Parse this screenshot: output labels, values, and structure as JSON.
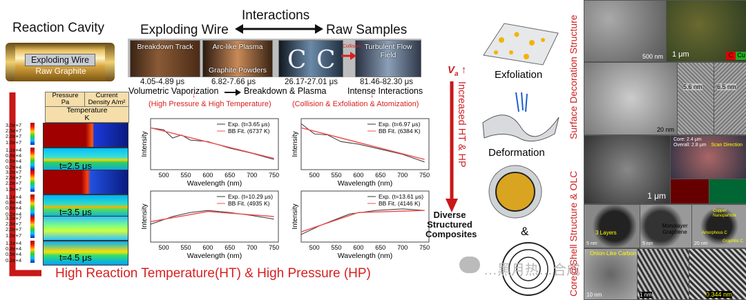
{
  "cavity": {
    "title": "Reaction Cavity",
    "label1": "Exploding Wire",
    "label2": "Raw Graphite"
  },
  "interactions": {
    "title": "Interactions",
    "left": "Exploding Wire",
    "right": "Raw Samples"
  },
  "stages": [
    {
      "caption": "Breakdown Track",
      "time": "4.05-4.89 μs"
    },
    {
      "caption": "Arc-like Plasma",
      "sub": "Graphite Powders",
      "time": "6.82-7.66 μs"
    },
    {
      "caption": "",
      "time": "26.17-27.01 μs"
    },
    {
      "caption": "Turbulent Flow Field",
      "tag": "Collision",
      "time": "81.46-82.30 μs"
    }
  ],
  "process": {
    "p1": "Volumetric Vaporization",
    "p2": "Breakdown & Plasma",
    "p3": "Intense Interactions",
    "sub1": "(High Pressure & High Temperature)",
    "sub2": "(Collision & Exfoliation & Atomization)"
  },
  "sim": {
    "h1a": "Pressure",
    "h1b": "Pa",
    "h2a": "Current",
    "h2b": "Density A/m²",
    "h3a": "Temperature",
    "h3b": "K",
    "scale_top": [
      "3.0e+7",
      "2.5e+7",
      "2.0e+7",
      "1.5e+7"
    ],
    "scale_bot": [
      "1.1e+4",
      "0.8e+4",
      "0.5e+4",
      "0.2e+4"
    ],
    "t1": "t=2.5 μs",
    "t2": "t=3.5 μs",
    "t3": "t=4.5 μs"
  },
  "bottom_title": "High Reaction Temperature(HT) & High Pressure (HP)",
  "chart_data": [
    {
      "type": "line",
      "xlabel": "Wavelength (nm)",
      "ylabel": "Intensity",
      "xlim": [
        470,
        760
      ],
      "xticks": [
        500,
        550,
        600,
        650,
        700,
        750
      ],
      "legend": [
        "Exp. (t=3.65 μs)",
        "BB Fit. (6737 K)"
      ],
      "series": [
        {
          "name": "Exp.",
          "x": [
            470,
            500,
            520,
            540,
            560,
            600,
            650,
            700,
            750
          ],
          "y": [
            0.82,
            0.78,
            0.62,
            0.68,
            0.58,
            0.55,
            0.42,
            0.32,
            0.2
          ]
        },
        {
          "name": "BB Fit.",
          "x": [
            470,
            750
          ],
          "y": [
            0.82,
            0.22
          ]
        }
      ]
    },
    {
      "type": "line",
      "xlabel": "Wavelength (nm)",
      "ylabel": "Intensity",
      "xlim": [
        470,
        760
      ],
      "xticks": [
        500,
        550,
        600,
        650,
        700,
        750
      ],
      "legend": [
        "Exp. (t=6.97 μs)",
        "BB Fit. (6384 K)"
      ],
      "series": [
        {
          "name": "Exp.",
          "x": [
            470,
            500,
            530,
            560,
            600,
            650,
            700,
            750
          ],
          "y": [
            0.9,
            0.7,
            0.68,
            0.55,
            0.5,
            0.4,
            0.3,
            0.15
          ]
        },
        {
          "name": "BB Fit.",
          "x": [
            470,
            750
          ],
          "y": [
            0.82,
            0.2
          ]
        }
      ]
    },
    {
      "type": "line",
      "xlabel": "Wavelength (nm)",
      "ylabel": "Intensity",
      "xlim": [
        470,
        760
      ],
      "xticks": [
        500,
        550,
        600,
        650,
        700,
        750
      ],
      "legend": [
        "Exp. (t=10.29 μs)",
        "BB Fit. (4935 K)"
      ],
      "series": [
        {
          "name": "Exp.",
          "x": [
            470,
            520,
            560,
            600,
            650,
            700,
            750
          ],
          "y": [
            0.35,
            0.5,
            0.58,
            0.62,
            0.58,
            0.52,
            0.45
          ]
        },
        {
          "name": "BB Fit.",
          "x": [
            470,
            600,
            750
          ],
          "y": [
            0.4,
            0.6,
            0.5
          ]
        }
      ]
    },
    {
      "type": "line",
      "xlabel": "Wavelength (nm)",
      "ylabel": "Intensity",
      "xlim": [
        470,
        760
      ],
      "xticks": [
        500,
        550,
        600,
        650,
        700,
        750
      ],
      "legend": [
        "Exp. (t=13.61 μs)",
        "BB Fit. (4146 K)"
      ],
      "series": [
        {
          "name": "Exp.",
          "x": [
            470,
            520,
            580,
            640,
            700,
            750
          ],
          "y": [
            0.15,
            0.35,
            0.55,
            0.62,
            0.65,
            0.62
          ]
        },
        {
          "name": "BB Fit.",
          "x": [
            470,
            600,
            750
          ],
          "y": [
            0.2,
            0.58,
            0.62
          ]
        }
      ]
    }
  ],
  "middle": {
    "va": "V",
    "va_sub": "a",
    "up": "↑",
    "vertical": "Increased HT & HP",
    "exfoliation": "Exfoliation",
    "deformation": "Deformation",
    "amp": "&",
    "diverse1": "Diverse",
    "diverse2": "Structured",
    "diverse3": "Composites"
  },
  "right": {
    "label1": "Surface Decoration Structure",
    "label2": "Core@Shell Structure & OLC",
    "scales": [
      "500 nm",
      "1 μm",
      "20 nm",
      "5.6 nm",
      "6.5 nm",
      "1 μm",
      "5 nm",
      "5 nm",
      "20 nm",
      "10 nm",
      "1 nm",
      "0.344 nm"
    ],
    "notes": [
      "3 Layers",
      "Monolayer Graphene",
      "Copper Nanoparticle",
      "Amorphous C",
      "Graphitic C",
      "Onion-Like Carbon",
      "Scan Direction",
      "Core: 2.4 μm",
      "Overall: 2.8 μm",
      "C",
      "Cu"
    ]
  },
  "watermark": "…黑月热…合成"
}
